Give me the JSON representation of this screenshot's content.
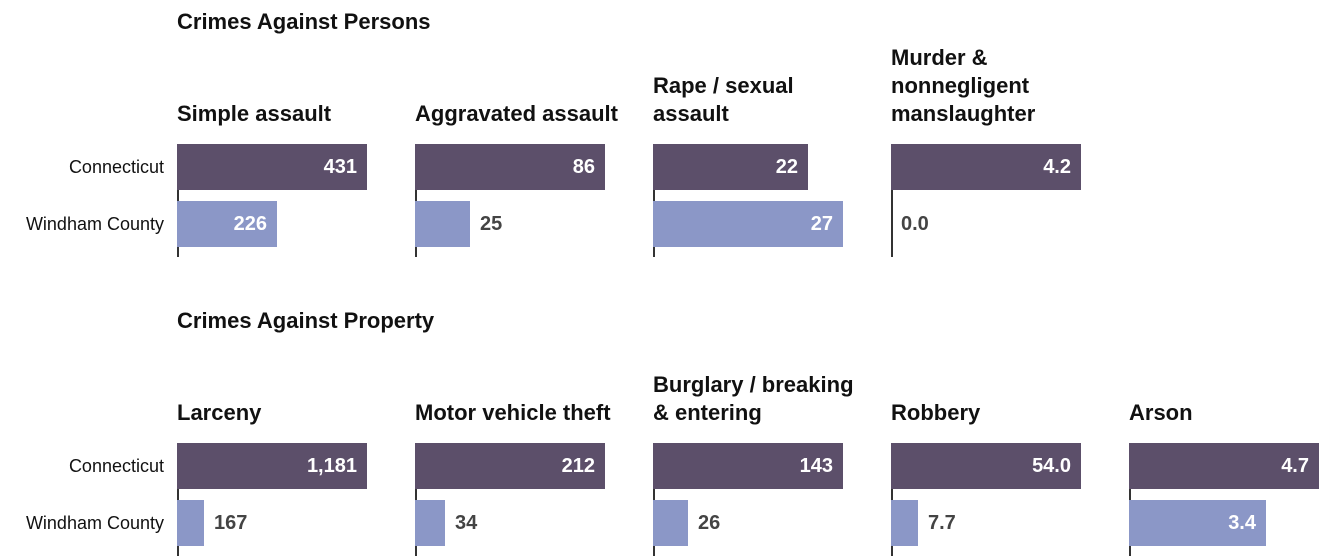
{
  "colors": {
    "connecticut": "#5c4f6a",
    "windham": "#8b97c7"
  },
  "legend_rows": [
    "Connecticut",
    "Windham County"
  ],
  "chart_data": [
    {
      "type": "bar",
      "title": "Crimes Against Persons",
      "panels": [
        {
          "title": "Simple assault",
          "scale_max": 431,
          "series": [
            {
              "name": "Connecticut",
              "value": 431,
              "label": "431"
            },
            {
              "name": "Windham County",
              "value": 226,
              "label": "226"
            }
          ]
        },
        {
          "title": "Aggravated assault",
          "scale_max": 86,
          "series": [
            {
              "name": "Connecticut",
              "value": 86,
              "label": "86"
            },
            {
              "name": "Windham County",
              "value": 25,
              "label": "25"
            }
          ]
        },
        {
          "title": "Rape / sexual assault",
          "scale_max": 27,
          "series": [
            {
              "name": "Connecticut",
              "value": 22,
              "label": "22"
            },
            {
              "name": "Windham County",
              "value": 27,
              "label": "27"
            }
          ]
        },
        {
          "title": "Murder & nonnegligent manslaughter",
          "scale_max": 4.2,
          "series": [
            {
              "name": "Connecticut",
              "value": 4.2,
              "label": "4.2"
            },
            {
              "name": "Windham County",
              "value": 0.0,
              "label": "0.0"
            }
          ]
        }
      ]
    },
    {
      "type": "bar",
      "title": "Crimes Against Property",
      "panels": [
        {
          "title": "Larceny",
          "scale_max": 1181,
          "series": [
            {
              "name": "Connecticut",
              "value": 1181,
              "label": "1,181"
            },
            {
              "name": "Windham County",
              "value": 167,
              "label": "167"
            }
          ]
        },
        {
          "title": "Motor vehicle theft",
          "scale_max": 212,
          "series": [
            {
              "name": "Connecticut",
              "value": 212,
              "label": "212"
            },
            {
              "name": "Windham County",
              "value": 34,
              "label": "34"
            }
          ]
        },
        {
          "title": "Burglary / breaking & entering",
          "scale_max": 143,
          "series": [
            {
              "name": "Connecticut",
              "value": 143,
              "label": "143"
            },
            {
              "name": "Windham County",
              "value": 26,
              "label": "26"
            }
          ]
        },
        {
          "title": "Robbery",
          "scale_max": 54.0,
          "series": [
            {
              "name": "Connecticut",
              "value": 54.0,
              "label": "54.0"
            },
            {
              "name": "Windham County",
              "value": 7.7,
              "label": "7.7"
            }
          ]
        },
        {
          "title": "Arson",
          "scale_max": 4.7,
          "series": [
            {
              "name": "Connecticut",
              "value": 4.7,
              "label": "4.7"
            },
            {
              "name": "Windham County",
              "value": 3.4,
              "label": "3.4"
            }
          ]
        }
      ]
    }
  ]
}
